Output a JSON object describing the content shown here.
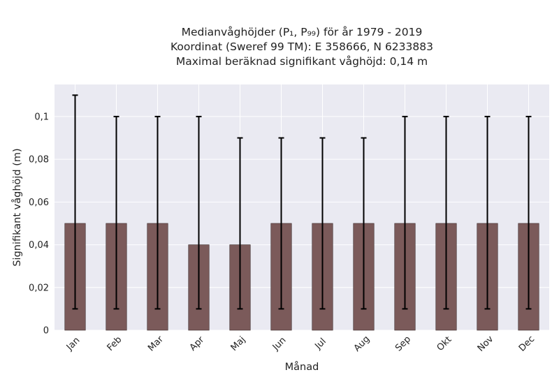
{
  "chart_data": {
    "type": "bar",
    "title_lines": [
      "Medianvåghöjder (P₁, P₉₉) för år 1979 - 2019",
      "Koordinat (Sweref 99 TM): E 358666, N 6233883",
      "Maximal beräknad signifikant våghöjd: 0,14 m"
    ],
    "xlabel": "Månad",
    "ylabel": "Signifikant våghöjd (m)",
    "categories": [
      "Jan",
      "Feb",
      "Mar",
      "Apr",
      "Maj",
      "Jun",
      "Jul",
      "Aug",
      "Sep",
      "Okt",
      "Nov",
      "Dec"
    ],
    "series": [
      {
        "values": [
          0.05,
          0.05,
          0.05,
          0.04,
          0.04,
          0.05,
          0.05,
          0.05,
          0.05,
          0.05,
          0.05,
          0.05
        ],
        "error_low": [
          0.01,
          0.01,
          0.01,
          0.01,
          0.01,
          0.01,
          0.01,
          0.01,
          0.01,
          0.01,
          0.01,
          0.01
        ],
        "error_high": [
          0.11,
          0.1,
          0.1,
          0.1,
          0.09,
          0.09,
          0.09,
          0.09,
          0.1,
          0.1,
          0.1,
          0.1
        ]
      }
    ],
    "ylim": [
      0,
      0.115
    ],
    "yticks": [
      0,
      0.02,
      0.04,
      0.06,
      0.08,
      0.1
    ],
    "ytick_labels": [
      "0",
      "0,02",
      "0,04",
      "0,06",
      "0,08",
      "0,1"
    ],
    "grid": true,
    "colors": {
      "bar": "#7b5a5a",
      "bar_edge": "#3a2a2a",
      "error": "#000000",
      "background": "#eaeaf2",
      "grid": "#ffffff"
    }
  }
}
